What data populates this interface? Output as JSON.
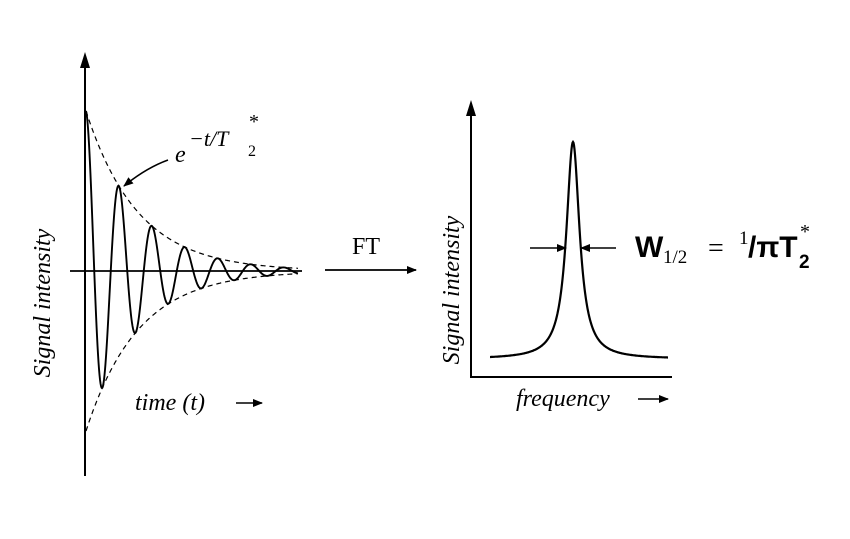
{
  "fid": {
    "ylabel": "Signal intensity",
    "xlabel": "time (t)",
    "envelope": {
      "base": "e",
      "exp_prefix": "−t/T",
      "sub": "2",
      "sup": "*"
    }
  },
  "transform": {
    "label": "FT"
  },
  "spectrum": {
    "ylabel": "Signal intensity",
    "xlabel": "frequency",
    "linewidth": {
      "lhs_main": "W",
      "lhs_sub": "1/2",
      "equals": "=",
      "rhs_num": "1",
      "rhs_den": "/πT",
      "rhs_sub": "2",
      "rhs_sup": "*"
    }
  }
}
